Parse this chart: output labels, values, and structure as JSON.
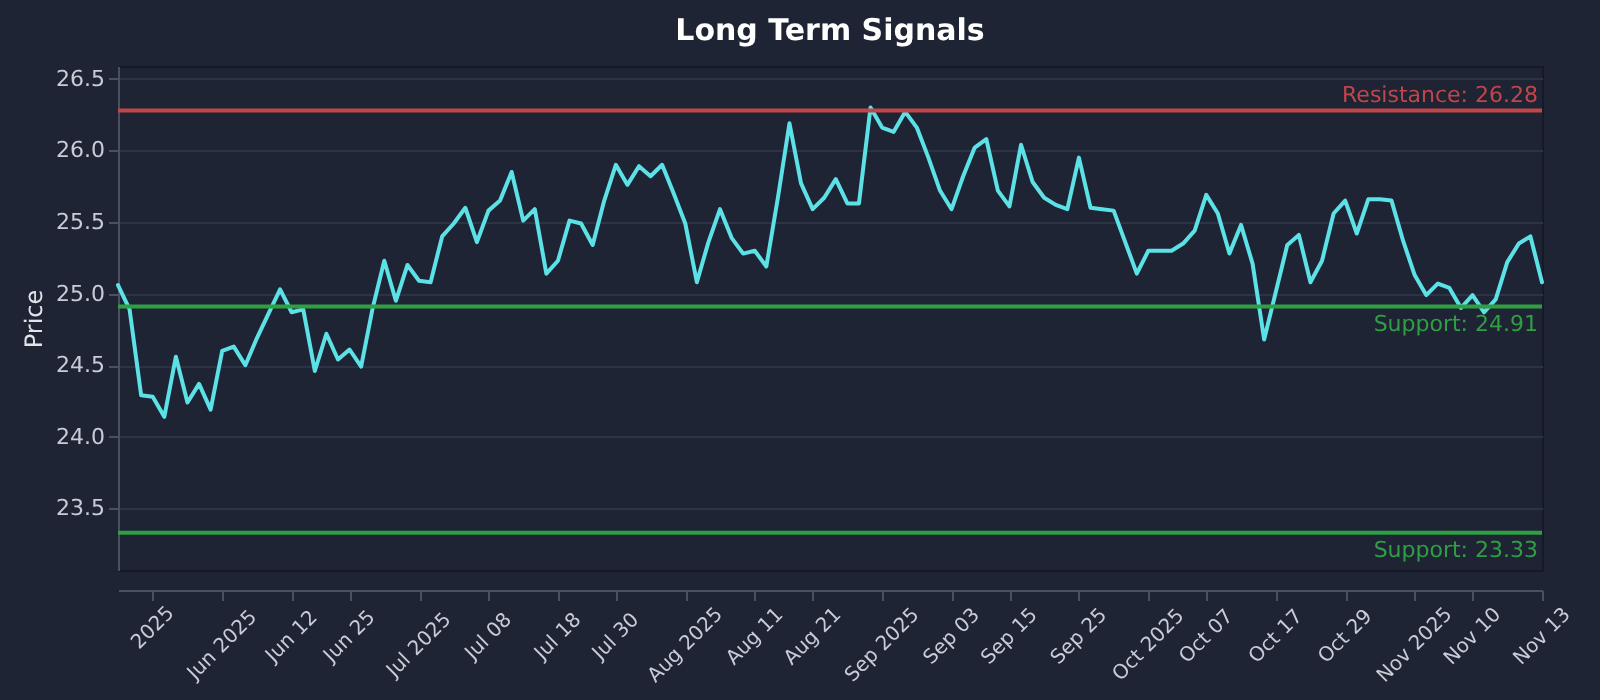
{
  "chart_data": {
    "type": "line",
    "title": "Long Term Signals",
    "ylabel": "Price",
    "categories": [
      null,
      null,
      null,
      "2025",
      null,
      null,
      null,
      null,
      null,
      "Jun 2025",
      null,
      null,
      null,
      null,
      null,
      "Jun 12",
      null,
      null,
      null,
      null,
      "Jun 25",
      null,
      null,
      null,
      null,
      null,
      "Jul 2025",
      null,
      null,
      null,
      null,
      null,
      "Jul 08",
      null,
      null,
      null,
      null,
      null,
      "Jul 18",
      null,
      null,
      null,
      null,
      "Jul 30",
      null,
      null,
      null,
      null,
      null,
      "Aug 2025",
      null,
      null,
      null,
      null,
      null,
      "Aug 11",
      null,
      null,
      null,
      null,
      "Aug 21",
      null,
      null,
      null,
      null,
      null,
      "Sep 2025",
      null,
      null,
      null,
      null,
      null,
      "Sep 03",
      null,
      null,
      null,
      null,
      "Sep 15",
      null,
      null,
      null,
      null,
      null,
      "Sep 25",
      null,
      null,
      null,
      null,
      null,
      "Oct 2025",
      null,
      null,
      null,
      null,
      "Oct 07",
      null,
      null,
      null,
      null,
      null,
      "Oct 17",
      null,
      null,
      null,
      null,
      null,
      "Oct 29",
      null,
      null,
      null,
      null,
      null,
      "Nov 2025",
      null,
      null,
      null,
      null,
      "Nov 10",
      null,
      null,
      null,
      null,
      null,
      "Nov 13"
    ],
    "series": [
      {
        "color": "#5ce1e6",
        "values": [
          25.06,
          24.89,
          24.29,
          24.28,
          24.14,
          24.56,
          24.24,
          24.37,
          24.19,
          24.6,
          24.63,
          24.5,
          24.69,
          24.86,
          25.03,
          24.87,
          24.89,
          24.46,
          24.72,
          24.54,
          24.61,
          24.49,
          24.9,
          25.23,
          24.95,
          25.2,
          25.09,
          25.08,
          25.4,
          25.49,
          25.6,
          25.36,
          25.58,
          25.65,
          25.85,
          25.51,
          25.59,
          25.14,
          25.23,
          25.51,
          25.49,
          25.34,
          25.65,
          25.9,
          25.76,
          25.89,
          25.82,
          25.9,
          25.7,
          25.49,
          25.08,
          25.36,
          25.59,
          25.39,
          25.28,
          25.3,
          25.19,
          25.67,
          26.19,
          25.77,
          25.59,
          25.67,
          25.8,
          25.63,
          25.63,
          26.3,
          26.16,
          26.13,
          26.27,
          26.16,
          25.95,
          25.72,
          25.59,
          25.82,
          26.02,
          26.08,
          25.72,
          25.61,
          26.04,
          25.78,
          25.67,
          25.62,
          25.59,
          25.95,
          25.6,
          25.59,
          25.58,
          25.36,
          25.14,
          25.3,
          25.3,
          25.3,
          25.35,
          25.44,
          25.69,
          25.56,
          25.28,
          25.48,
          25.21,
          24.68,
          25.01,
          25.34,
          25.41,
          25.08,
          25.23,
          25.56,
          25.65,
          25.42,
          25.66,
          25.66,
          25.65,
          25.37,
          25.13,
          24.99,
          25.07,
          25.04,
          24.9,
          24.99,
          24.87,
          24.96,
          25.22,
          25.35,
          25.4,
          25.08
        ]
      }
    ],
    "ylim": [
      23.07,
      26.59
    ],
    "yticks": [
      23.5,
      {
        "value": 24,
        "label": "24.0"
      },
      24.5,
      {
        "value": 25,
        "label": "25.0"
      },
      25.5,
      {
        "value": 26,
        "label": "26.0"
      },
      26.5
    ],
    "grid": "y",
    "legend": false,
    "marker": "none",
    "line_style": "solid",
    "ref_lines": [
      {
        "axis": "y",
        "value": 26.28,
        "label": "Resistance: 26.28",
        "color": "#c0464b"
      },
      {
        "axis": "y",
        "value": 24.91,
        "label": "Support: 24.91",
        "color": "#2ea043"
      },
      {
        "axis": "y",
        "value": 23.33,
        "label": "Support: 23.33",
        "color": "#2ea043"
      }
    ]
  }
}
